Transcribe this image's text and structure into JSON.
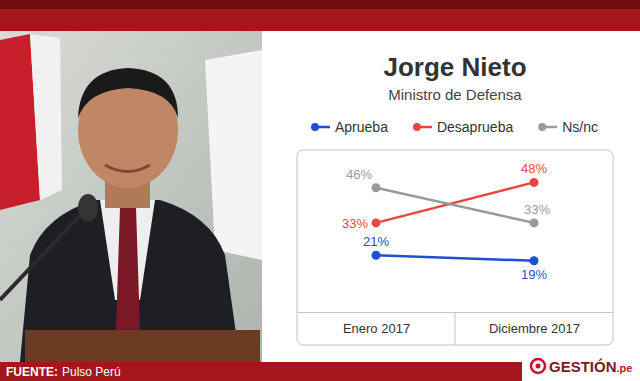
{
  "chart_data": {
    "type": "line",
    "title": "Jorge Nieto",
    "subtitle": "Ministro de Defensa",
    "categories": [
      "Enero 2017",
      "Diciembre 2017"
    ],
    "series": [
      {
        "name": "Aprueba",
        "color": "#1f4fd6",
        "values": [
          21,
          19
        ],
        "value_labels": [
          "21%",
          "19%"
        ]
      },
      {
        "name": "Desaprueba",
        "color": "#e8473f",
        "values": [
          33,
          48
        ],
        "value_labels": [
          "33%",
          "48%"
        ]
      },
      {
        "name": "Ns/nc",
        "color": "#9a9a9a",
        "values": [
          46,
          33
        ],
        "value_labels": [
          "46%",
          "33%"
        ]
      }
    ],
    "ylim": [
      0,
      60
    ],
    "yticks": [],
    "tick_labels": "x",
    "grid": false,
    "legend": "top",
    "data_labels": true,
    "marker": "circle",
    "line_style": "solid"
  },
  "footer": {
    "source_label": "FUENTE:",
    "source": "Pulso Perú",
    "brand": "GESTIÓN",
    "brand_suffix": ".pe"
  }
}
